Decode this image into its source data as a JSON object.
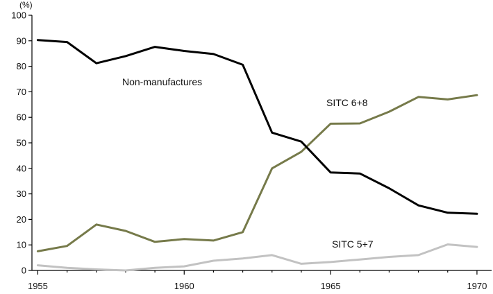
{
  "chart_data": {
    "type": "line",
    "title": "",
    "xlabel": "",
    "ylabel": "(%)",
    "xlim": [
      1954.8,
      1970.5
    ],
    "ylim": [
      0,
      100
    ],
    "x_ticks": [
      1955,
      1960,
      1965,
      1970
    ],
    "x_tick_labels": [
      "1955",
      "1960",
      "1965",
      "1970"
    ],
    "y_ticks": [
      0,
      10,
      20,
      30,
      40,
      50,
      60,
      70,
      80,
      90,
      100
    ],
    "y_tick_labels": [
      "0",
      "10",
      "20",
      "30",
      "40",
      "50",
      "60",
      "70",
      "80",
      "90",
      "100"
    ],
    "grid": false,
    "legend": "inline labels",
    "x": [
      1955,
      1956,
      1957,
      1958,
      1959,
      1960,
      1961,
      1962,
      1963,
      1964,
      1965,
      1966,
      1967,
      1968,
      1969,
      1970
    ],
    "series": [
      {
        "name": "Non-manufactures",
        "color": "#000000",
        "values": [
          90.3,
          89.5,
          81.2,
          84.0,
          87.6,
          86.0,
          84.8,
          80.6,
          54.0,
          50.5,
          38.4,
          38.0,
          32.2,
          25.5,
          22.6,
          22.2
        ]
      },
      {
        "name": "SITC 6+8",
        "color": "#767a4a",
        "values": [
          7.5,
          9.6,
          18.0,
          15.5,
          11.2,
          12.3,
          11.7,
          15.0,
          40.0,
          46.5,
          57.5,
          57.6,
          62.2,
          68.0,
          67.0,
          68.7
        ]
      },
      {
        "name": "SITC 5+7",
        "color": "#c2c2c2",
        "values": [
          2.0,
          1.0,
          0.4,
          0.0,
          1.0,
          1.6,
          3.8,
          4.7,
          6.0,
          2.6,
          3.3,
          4.3,
          5.3,
          6.0,
          10.2,
          9.2
        ]
      }
    ]
  }
}
